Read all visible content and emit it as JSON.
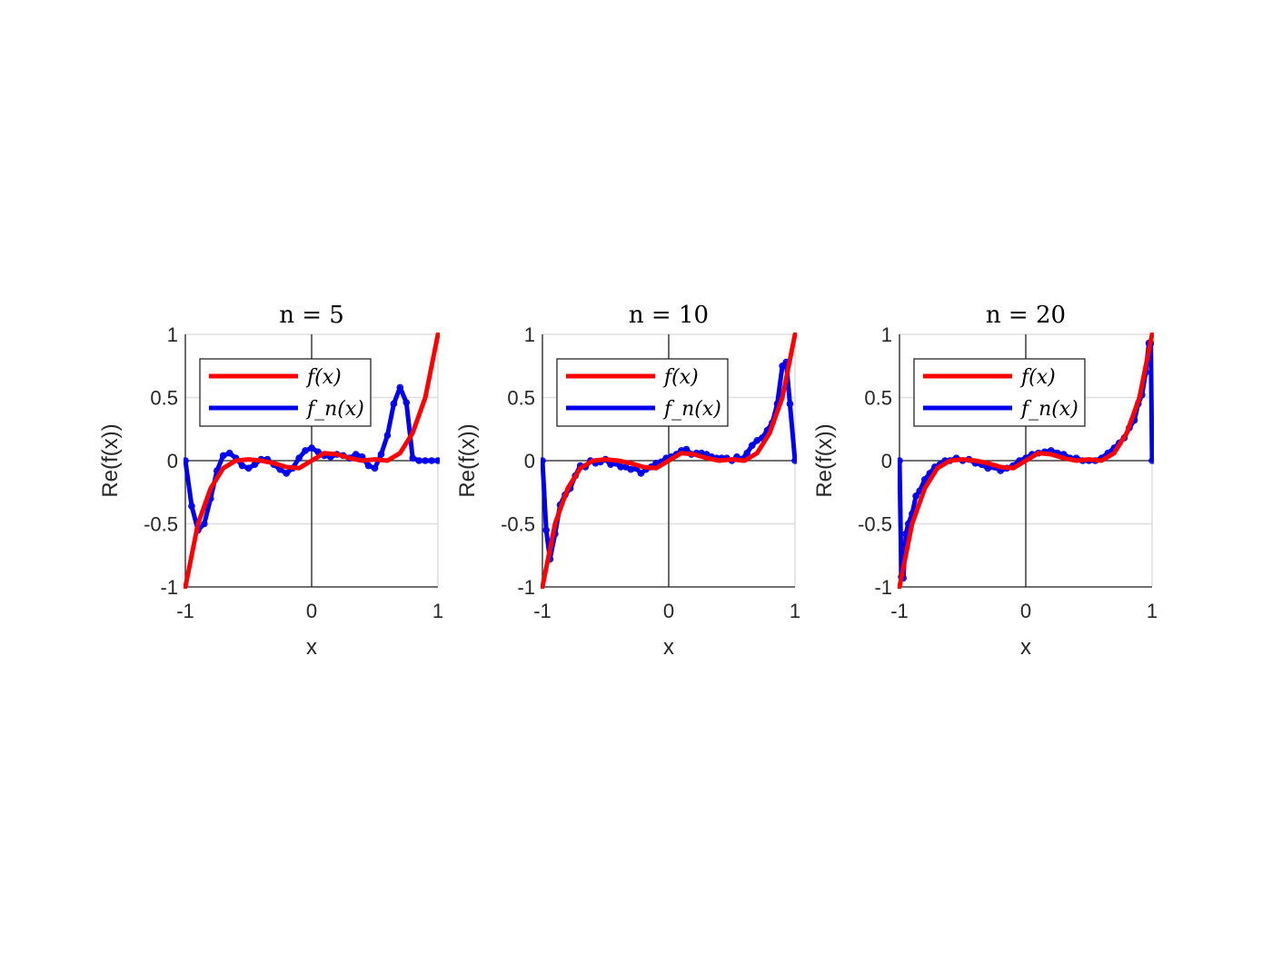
{
  "colors": {
    "f": "#ff0000",
    "fn": "#0000ee"
  },
  "chart_data": [
    {
      "type": "line",
      "title": "n = 5",
      "xlabel": "x",
      "ylabel": "Re(f(x))",
      "xlim": [
        -1,
        1
      ],
      "ylim": [
        -1,
        1
      ],
      "xticks": [
        "-1",
        "0",
        "1"
      ],
      "yticks": [
        "-1",
        "-0.5",
        "0",
        "0.5",
        "1"
      ],
      "grid": true,
      "legend_position": "top-left",
      "legend": [
        "f(x)",
        "f_n(x)"
      ],
      "series": [
        {
          "name": "f(x)",
          "x": [
            -1,
            -0.9,
            -0.8,
            -0.7,
            -0.6,
            -0.5,
            -0.4,
            -0.3,
            -0.2,
            -0.1,
            0,
            0.1,
            0.2,
            0.3,
            0.4,
            0.5,
            0.6,
            0.7,
            0.8,
            0.9,
            1
          ],
          "y": [
            -1,
            -0.5,
            -0.22,
            -0.06,
            0,
            0.01,
            0,
            -0.02,
            -0.05,
            -0.06,
            0,
            0.06,
            0.05,
            0.02,
            0,
            0.01,
            0,
            0.06,
            0.22,
            0.5,
            1
          ]
        },
        {
          "name": "f_n(x)",
          "x": [
            -1,
            -0.95,
            -0.9,
            -0.85,
            -0.8,
            -0.75,
            -0.7,
            -0.65,
            -0.6,
            -0.55,
            -0.5,
            -0.45,
            -0.4,
            -0.35,
            -0.3,
            -0.25,
            -0.2,
            -0.15,
            -0.1,
            -0.05,
            0,
            0.05,
            0.1,
            0.15,
            0.2,
            0.25,
            0.3,
            0.35,
            0.4,
            0.45,
            0.5,
            0.55,
            0.6,
            0.65,
            0.7,
            0.75,
            0.8,
            0.85,
            0.9,
            0.95,
            1
          ],
          "y": [
            0,
            -0.36,
            -0.55,
            -0.5,
            -0.3,
            -0.08,
            0.04,
            0.06,
            0.02,
            -0.04,
            -0.06,
            -0.03,
            0.01,
            0.01,
            -0.03,
            -0.07,
            -0.1,
            -0.06,
            0.02,
            0.08,
            0.1,
            0.07,
            0.04,
            0.03,
            0.05,
            0.04,
            0.02,
            0.05,
            0.03,
            -0.04,
            -0.06,
            0.05,
            0.2,
            0.45,
            0.58,
            0.46,
            0.02,
            0,
            0,
            0,
            0
          ]
        }
      ]
    },
    {
      "type": "line",
      "title": "n = 10",
      "xlabel": "x",
      "ylabel": "Re(f(x))",
      "xlim": [
        -1,
        1
      ],
      "ylim": [
        -1,
        1
      ],
      "xticks": [
        "-1",
        "0",
        "1"
      ],
      "yticks": [
        "-1",
        "-0.5",
        "0",
        "0.5",
        "1"
      ],
      "grid": true,
      "legend_position": "top-left",
      "legend": [
        "f(x)",
        "f_n(x)"
      ],
      "series": [
        {
          "name": "f(x)",
          "x": [
            -1,
            -0.9,
            -0.8,
            -0.7,
            -0.6,
            -0.5,
            -0.4,
            -0.3,
            -0.2,
            -0.1,
            0,
            0.1,
            0.2,
            0.3,
            0.4,
            0.5,
            0.6,
            0.7,
            0.8,
            0.9,
            1
          ],
          "y": [
            -1,
            -0.5,
            -0.22,
            -0.06,
            0,
            0.01,
            0,
            -0.02,
            -0.05,
            -0.06,
            0,
            0.06,
            0.05,
            0.02,
            0,
            0.01,
            0,
            0.06,
            0.22,
            0.5,
            1
          ]
        },
        {
          "name": "f_n(x)",
          "x": [
            -1,
            -0.97,
            -0.94,
            -0.9,
            -0.86,
            -0.82,
            -0.78,
            -0.74,
            -0.7,
            -0.66,
            -0.62,
            -0.58,
            -0.54,
            -0.5,
            -0.46,
            -0.42,
            -0.38,
            -0.34,
            -0.3,
            -0.26,
            -0.22,
            -0.18,
            -0.14,
            -0.1,
            -0.06,
            -0.02,
            0.02,
            0.06,
            0.1,
            0.14,
            0.18,
            0.22,
            0.26,
            0.3,
            0.34,
            0.38,
            0.42,
            0.46,
            0.5,
            0.54,
            0.58,
            0.62,
            0.66,
            0.7,
            0.74,
            0.78,
            0.82,
            0.86,
            0.9,
            0.93,
            0.96,
            1
          ],
          "y": [
            0,
            -0.55,
            -0.78,
            -0.58,
            -0.35,
            -0.27,
            -0.22,
            -0.12,
            -0.04,
            -0.05,
            0,
            -0.02,
            -0.01,
            0.01,
            -0.03,
            -0.02,
            -0.05,
            -0.05,
            -0.07,
            -0.06,
            -0.1,
            -0.07,
            -0.05,
            -0.02,
            -0.01,
            0.02,
            0.03,
            0.05,
            0.08,
            0.09,
            0.05,
            0.06,
            0.06,
            0.05,
            0.03,
            0.02,
            0.02,
            0.02,
            0,
            0.03,
            0.01,
            0.06,
            0.12,
            0.16,
            0.18,
            0.24,
            0.3,
            0.45,
            0.75,
            0.78,
            0.45,
            0
          ]
        }
      ]
    },
    {
      "type": "line",
      "title": "n = 20",
      "xlabel": "x",
      "ylabel": "Re(f(x))",
      "xlim": [
        -1,
        1
      ],
      "ylim": [
        -1,
        1
      ],
      "xticks": [
        "-1",
        "0",
        "1"
      ],
      "yticks": [
        "-1",
        "-0.5",
        "0",
        "0.5",
        "1"
      ],
      "grid": true,
      "legend_position": "top-left",
      "legend": [
        "f(x)",
        "f_n(x)"
      ],
      "series": [
        {
          "name": "f(x)",
          "x": [
            -1,
            -0.9,
            -0.8,
            -0.7,
            -0.6,
            -0.5,
            -0.4,
            -0.3,
            -0.2,
            -0.1,
            0,
            0.1,
            0.2,
            0.3,
            0.4,
            0.5,
            0.6,
            0.7,
            0.8,
            0.9,
            1
          ],
          "y": [
            -1,
            -0.5,
            -0.22,
            -0.06,
            0,
            0.01,
            0,
            -0.02,
            -0.05,
            -0.06,
            0,
            0.06,
            0.05,
            0.02,
            0,
            0.01,
            0,
            0.06,
            0.22,
            0.5,
            1
          ]
        },
        {
          "name": "f_n(x)",
          "x": [
            -1,
            -0.985,
            -0.97,
            -0.95,
            -0.93,
            -0.9,
            -0.87,
            -0.84,
            -0.8,
            -0.76,
            -0.72,
            -0.68,
            -0.64,
            -0.6,
            -0.55,
            -0.5,
            -0.45,
            -0.4,
            -0.35,
            -0.3,
            -0.25,
            -0.2,
            -0.15,
            -0.1,
            -0.05,
            0,
            0.05,
            0.1,
            0.15,
            0.2,
            0.25,
            0.3,
            0.35,
            0.4,
            0.45,
            0.5,
            0.55,
            0.6,
            0.65,
            0.7,
            0.74,
            0.78,
            0.82,
            0.86,
            0.89,
            0.92,
            0.95,
            0.975,
            0.99,
            1
          ],
          "y": [
            0,
            -0.92,
            -0.93,
            -0.58,
            -0.5,
            -0.42,
            -0.28,
            -0.24,
            -0.15,
            -0.1,
            -0.05,
            -0.03,
            0,
            0,
            0.02,
            0,
            0.01,
            -0.02,
            -0.03,
            -0.06,
            -0.05,
            -0.08,
            -0.06,
            -0.04,
            0,
            0.02,
            0.05,
            0.06,
            0.07,
            0.08,
            0.06,
            0.05,
            0.02,
            0.02,
            0,
            0,
            0,
            0.02,
            0.06,
            0.1,
            0.14,
            0.18,
            0.26,
            0.32,
            0.45,
            0.52,
            0.7,
            0.93,
            0.93,
            0
          ]
        }
      ]
    }
  ]
}
